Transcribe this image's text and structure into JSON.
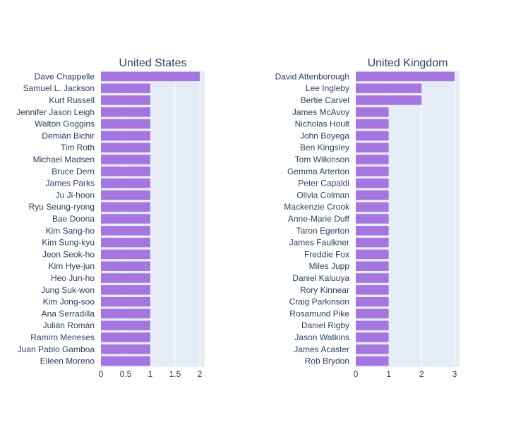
{
  "chart_data": [
    {
      "type": "bar",
      "orientation": "horizontal",
      "title": "United States",
      "bar_color": "#a576e0",
      "plot_bg": "#e5ecf6",
      "grid": true,
      "xlim": [
        0,
        2.1
      ],
      "xticks": [
        0,
        0.5,
        1,
        1.5,
        2
      ],
      "xtick_labels": [
        "0",
        "0.5",
        "1",
        "1.5",
        "2"
      ],
      "categories": [
        "Dave Chappelle",
        "Samuel L. Jackson",
        "Kurt Russell",
        "Jennifer Jason Leigh",
        "Walton Goggins",
        "Demián Bichir",
        "Tim Roth",
        "Michael Madsen",
        "Bruce Dern",
        "James Parks",
        "Ju Ji-hoon",
        "Ryu Seung-ryong",
        "Bae Doona",
        "Kim Sang-ho",
        "Kim Sung-kyu",
        "Jeon Seok-ho",
        "Kim Hye-jun",
        "Heo Jun-ho",
        "Jung Suk-won",
        "Kim Jong-soo",
        "Ana Serradilla",
        "Julián Román",
        "Ramiro Meneses",
        "Juan Pablo Gamboa",
        "Eileen Moreno"
      ],
      "values": [
        2,
        1,
        1,
        1,
        1,
        1,
        1,
        1,
        1,
        1,
        1,
        1,
        1,
        1,
        1,
        1,
        1,
        1,
        1,
        1,
        1,
        1,
        1,
        1,
        1
      ]
    },
    {
      "type": "bar",
      "orientation": "horizontal",
      "title": "United Kingdom",
      "bar_color": "#a576e0",
      "plot_bg": "#e5ecf6",
      "grid": true,
      "xlim": [
        0,
        3.15
      ],
      "xticks": [
        0,
        1,
        2,
        3
      ],
      "xtick_labels": [
        "0",
        "1",
        "2",
        "3"
      ],
      "categories": [
        "David Attenborough",
        "Lee Ingleby",
        "Bertie Carvel",
        "James McAvoy",
        "Nicholas Hoult",
        "John Boyega",
        "Ben Kingsley",
        "Tom Wilkinson",
        "Gemma Arterton",
        "Peter Capaldi",
        "Olivia Colman",
        "Mackenzie Crook",
        "Anne-Marie Duff",
        "Taron Egerton",
        "James Faulkner",
        "Freddie Fox",
        "Miles Jupp",
        "Daniel Kaluuya",
        "Rory Kinnear",
        "Craig Parkinson",
        "Rosamund Pike",
        "Daniel Rigby",
        "Jason Watkins",
        "James Acaster",
        "Rob Brydon"
      ],
      "values": [
        3,
        2,
        2,
        1,
        1,
        1,
        1,
        1,
        1,
        1,
        1,
        1,
        1,
        1,
        1,
        1,
        1,
        1,
        1,
        1,
        1,
        1,
        1,
        1,
        1
      ]
    }
  ]
}
